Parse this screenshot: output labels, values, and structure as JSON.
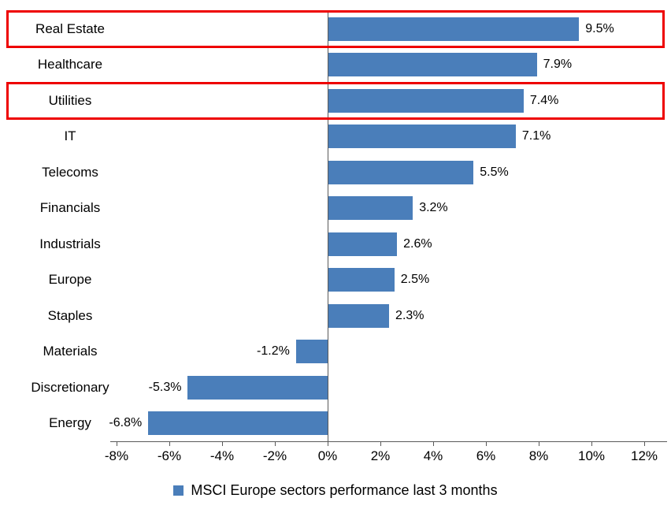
{
  "chart_data": {
    "type": "bar",
    "orientation": "horizontal",
    "title": "",
    "categories": [
      "Real Estate",
      "Healthcare",
      "Utilities",
      "IT",
      "Telecoms",
      "Financials",
      "Industrials",
      "Europe",
      "Staples",
      "Materials",
      "Discretionary",
      "Energy"
    ],
    "values": [
      9.5,
      7.9,
      7.4,
      7.1,
      5.5,
      3.2,
      2.6,
      2.5,
      2.3,
      -1.2,
      -5.3,
      -6.8
    ],
    "value_labels": [
      "9.5%",
      "7.9%",
      "7.4%",
      "7.1%",
      "5.5%",
      "3.2%",
      "2.6%",
      "2.5%",
      "2.3%",
      "-1.2%",
      "-5.3%",
      "-6.8%"
    ],
    "xlim": [
      -8,
      12
    ],
    "x_tick_values": [
      -8,
      -6,
      -4,
      -2,
      0,
      2,
      4,
      6,
      8,
      10,
      12
    ],
    "x_tick_labels": [
      "-8%",
      "-6%",
      "-4%",
      "-2%",
      "0%",
      "2%",
      "4%",
      "6%",
      "8%",
      "10%",
      "12%"
    ],
    "grid": false,
    "legend": "MSCI Europe sectors performance last 3 months",
    "legend_position": "bottom",
    "bar_color": "#4a7eba",
    "axis_color": "#595959",
    "highlight_color": "#ee0000",
    "highlighted_categories": [
      "Real Estate",
      "Utilities"
    ]
  }
}
